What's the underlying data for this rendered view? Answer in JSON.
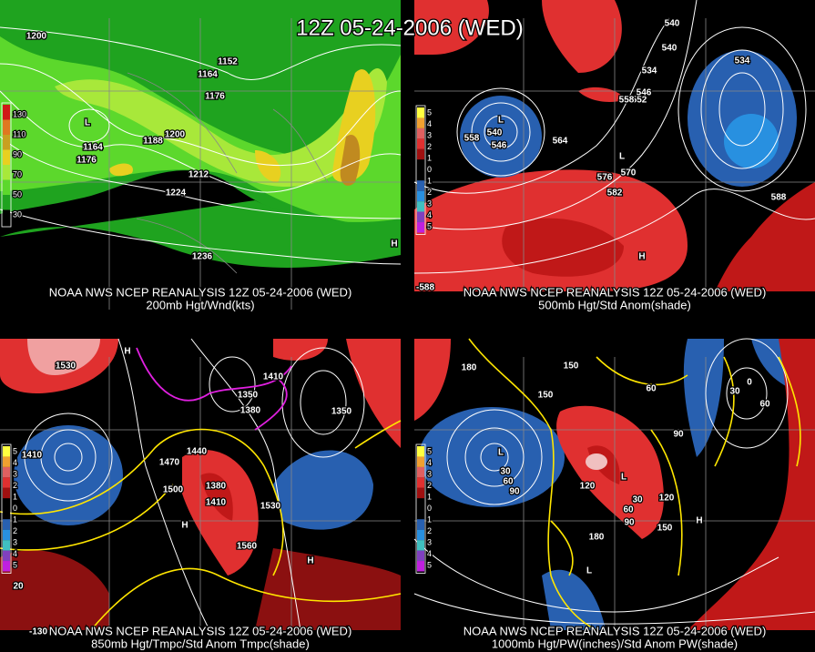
{
  "title": "12Z 05-24-2006 (WED)",
  "panels": [
    {
      "caption_line1": "NOAA NWS NCEP REANALYSIS 12Z 05-24-2006 (WED)",
      "caption_line2": "200mb Hgt/Wnd(kts)",
      "legend": [
        "130",
        "110",
        "90",
        "70",
        "50",
        "30"
      ],
      "labels": [
        "1200",
        "1152",
        "1164",
        "1176",
        "1164",
        "1176",
        "1188",
        "1200",
        "1212",
        "1224",
        "1236",
        "L",
        "H"
      ]
    },
    {
      "caption_line1": "NOAA NWS NCEP REANALYSIS 12Z 05-24-2006 (WED)",
      "caption_line2": "500mb Hgt/Std Anom(shade)",
      "legend": [
        "5",
        "4",
        "3",
        "2",
        "1",
        "0",
        "1",
        "2",
        "3",
        "4",
        "5"
      ],
      "labels": [
        "558",
        "540",
        "546",
        "564",
        "576",
        "570",
        "582",
        "552",
        "546",
        "558",
        "534",
        "540",
        "540",
        "534",
        "588",
        "-588",
        "L",
        "L",
        "H"
      ]
    },
    {
      "caption_line1": "NOAA NWS NCEP REANALYSIS 12Z 05-24-2006 (WED)",
      "caption_line2": "850mb Hgt/Tmpc/Std Anom Tmpc(shade)",
      "legend": [
        "5",
        "4",
        "3",
        "2",
        "1",
        "0",
        "1",
        "2",
        "3",
        "4",
        "5"
      ],
      "labels": [
        "1530",
        "1410",
        "1470",
        "1500",
        "1440",
        "1380",
        "1410",
        "1560",
        "1530",
        "1410",
        "1350",
        "1380",
        "1350",
        "H",
        "H",
        "H",
        "20",
        "-130"
      ]
    },
    {
      "caption_line1": "NOAA NWS NCEP REANALYSIS 12Z 05-24-2006 (WED)",
      "caption_line2": "1000mb Hgt/PW(inches)/Std Anom PW(shade)",
      "legend": [
        "5",
        "4",
        "3",
        "2",
        "1",
        "0",
        "1",
        "2",
        "3",
        "4",
        "5"
      ],
      "labels": [
        "180",
        "150",
        "150",
        "30",
        "60",
        "90",
        "120",
        "30",
        "60",
        "90",
        "120",
        "150",
        "180",
        "90",
        "60",
        "0",
        "60",
        "30",
        "L",
        "L",
        "H",
        "L"
      ]
    }
  ]
}
